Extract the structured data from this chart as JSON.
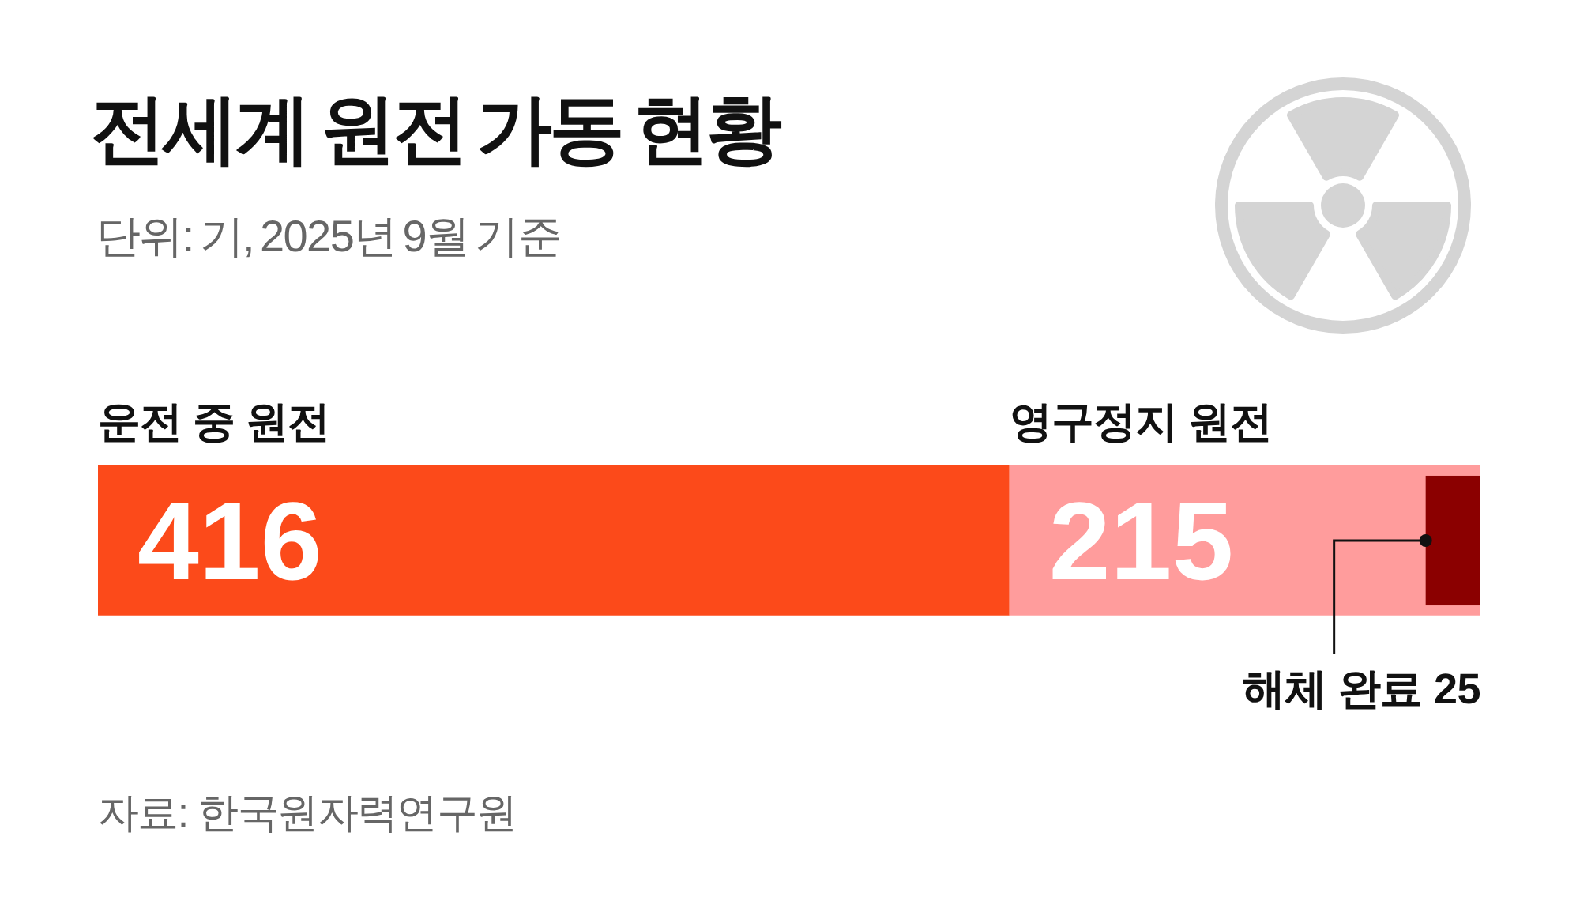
{
  "chart_data": {
    "type": "bar",
    "orientation": "horizontal",
    "stacked": true,
    "title": "전세계 원전 가동 현황",
    "subtitle": "단위: 기, 2025년 9월 기준",
    "annotations": [
      "자료: 한국원자력연구원"
    ],
    "categories": [
      null
    ],
    "series": [
      {
        "name": "운전 중 원전",
        "color": "#fc4a1a",
        "values": [
          416
        ]
      },
      {
        "name": "영구정지 원전",
        "color": "#ff9c9c",
        "values": [
          215
        ]
      }
    ],
    "bands": [
      {
        "axis": "x",
        "from": 606,
        "to": 631,
        "label": "해체 완료 25",
        "color": "#8b0000"
      }
    ],
    "data_labels": true,
    "tick_labels": false
  }
}
